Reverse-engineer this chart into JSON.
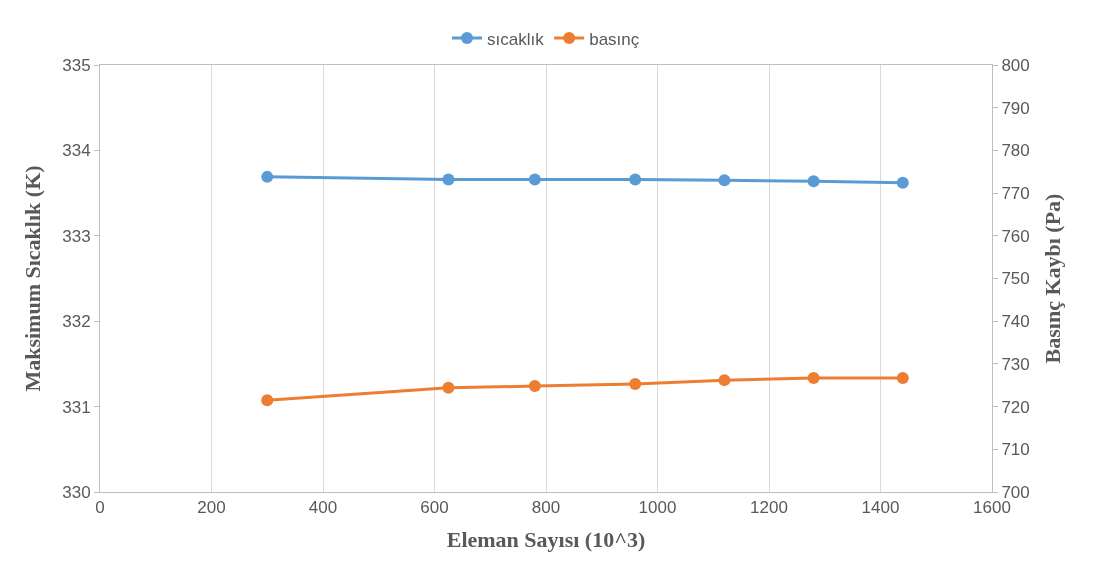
{
  "chart_data": {
    "type": "line",
    "xlabel": "Eleman Sayısı (10^3)",
    "ylabel": "Maksimum Sıcaklık (K)",
    "y2label": "Basınç Kaybı (Pa)",
    "x": [
      300,
      625,
      780,
      960,
      1120,
      1280,
      1440
    ],
    "series": [
      {
        "name": "sıcaklık",
        "color": "#5b9bd5",
        "values": [
          333.69,
          333.66,
          333.66,
          333.66,
          333.65,
          333.64,
          333.62
        ]
      },
      {
        "name": "basınç",
        "color": "#ed7d31",
        "axis": "y2",
        "values": [
          721.5,
          724.4,
          724.8,
          725.3,
          726.2,
          726.7,
          726.7
        ]
      }
    ],
    "xlim": [
      0,
      1600
    ],
    "xticks": [
      0,
      200,
      400,
      600,
      800,
      1000,
      1200,
      1400,
      1600
    ],
    "ylim": [
      330,
      335
    ],
    "yticks": [
      330,
      331,
      332,
      333,
      334,
      335
    ],
    "y2lim": [
      700,
      800
    ],
    "y2ticks": [
      700,
      710,
      720,
      730,
      740,
      750,
      760,
      770,
      780,
      790,
      800
    ],
    "grid": "x",
    "legend": "top",
    "marker": "circle",
    "line_style": "solid"
  }
}
